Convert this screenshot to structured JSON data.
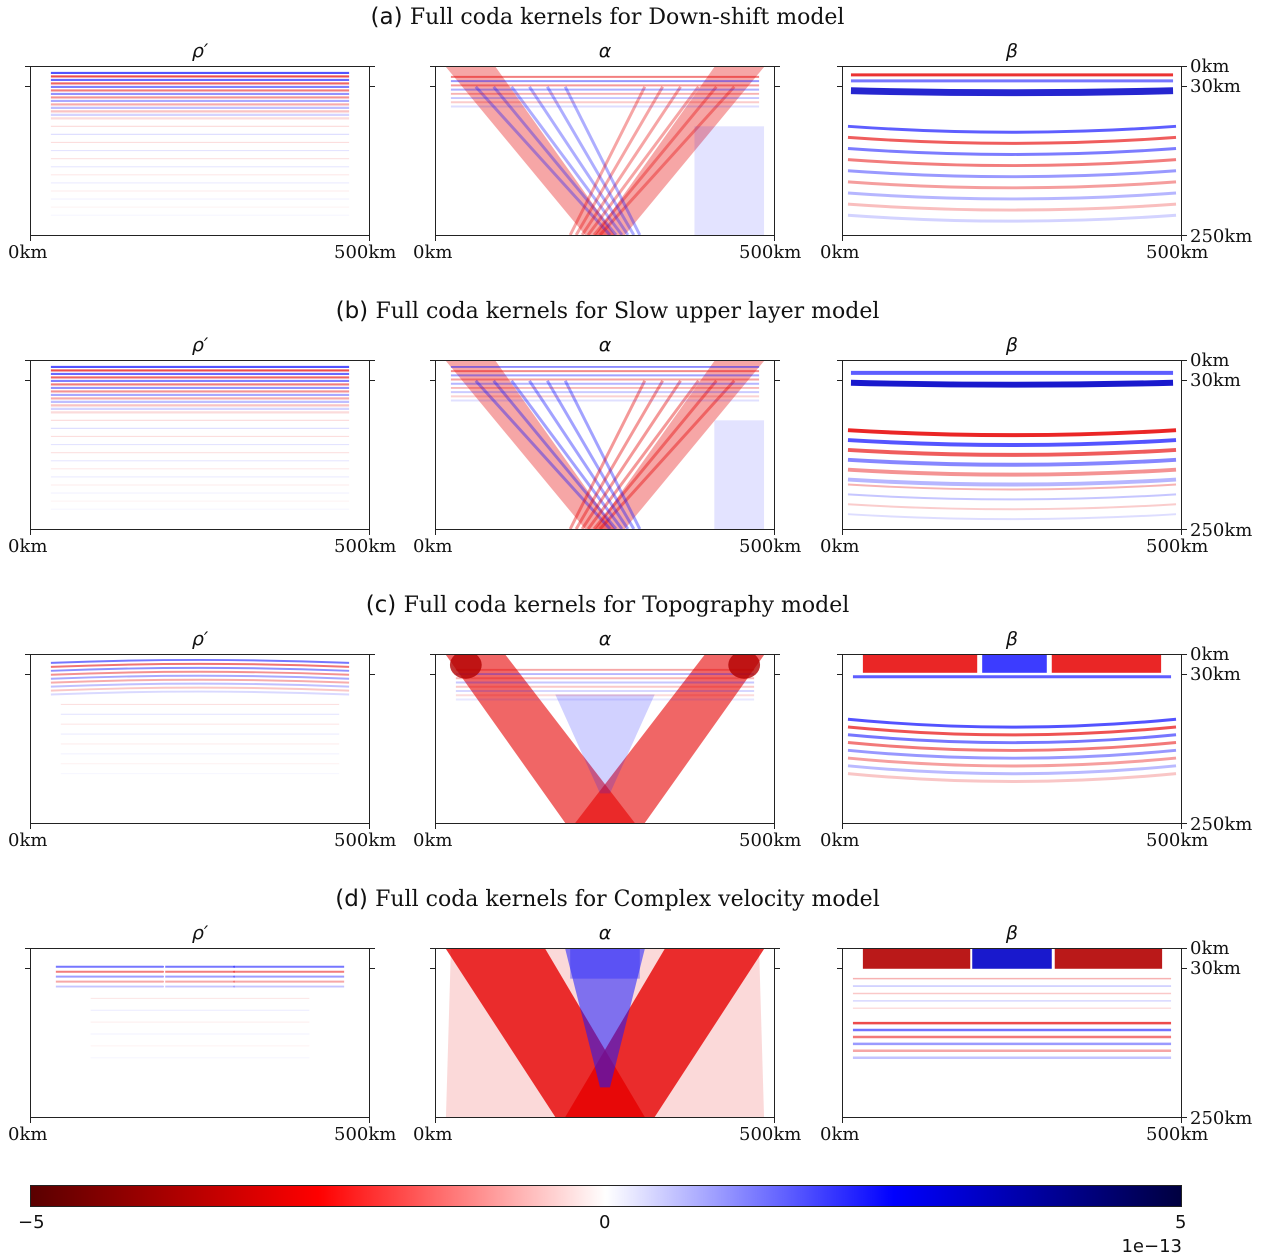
{
  "chart_data": {
    "type": "heatmap",
    "colormap": "seismic_r",
    "colorbar": {
      "ticks": [
        "−5",
        "0",
        "5"
      ],
      "vmin": -5,
      "vmax": 5,
      "exponent": "1e−13",
      "colors": [
        "#5a0000",
        "#ff0000",
        "#ffffff",
        "#0000ff",
        "#000040"
      ]
    },
    "xaxis": {
      "ticks": [
        "0km",
        "500km"
      ],
      "range": [
        0,
        500
      ]
    },
    "yaxis": {
      "ticks": [
        "0km",
        "30km",
        "250km"
      ],
      "range": [
        0,
        250
      ]
    },
    "panel_titles": [
      "ρ′",
      "α",
      "β"
    ],
    "rows": [
      {
        "tag": "(a)",
        "title": "Full coda kernels for Down-shift model"
      },
      {
        "tag": "(b)",
        "title": "Full coda kernels for Slow upper layer model"
      },
      {
        "tag": "(c)",
        "title": "Full coda kernels for Topography model"
      },
      {
        "tag": "(d)",
        "title": "Full coda kernels for Complex velocity model"
      }
    ]
  }
}
